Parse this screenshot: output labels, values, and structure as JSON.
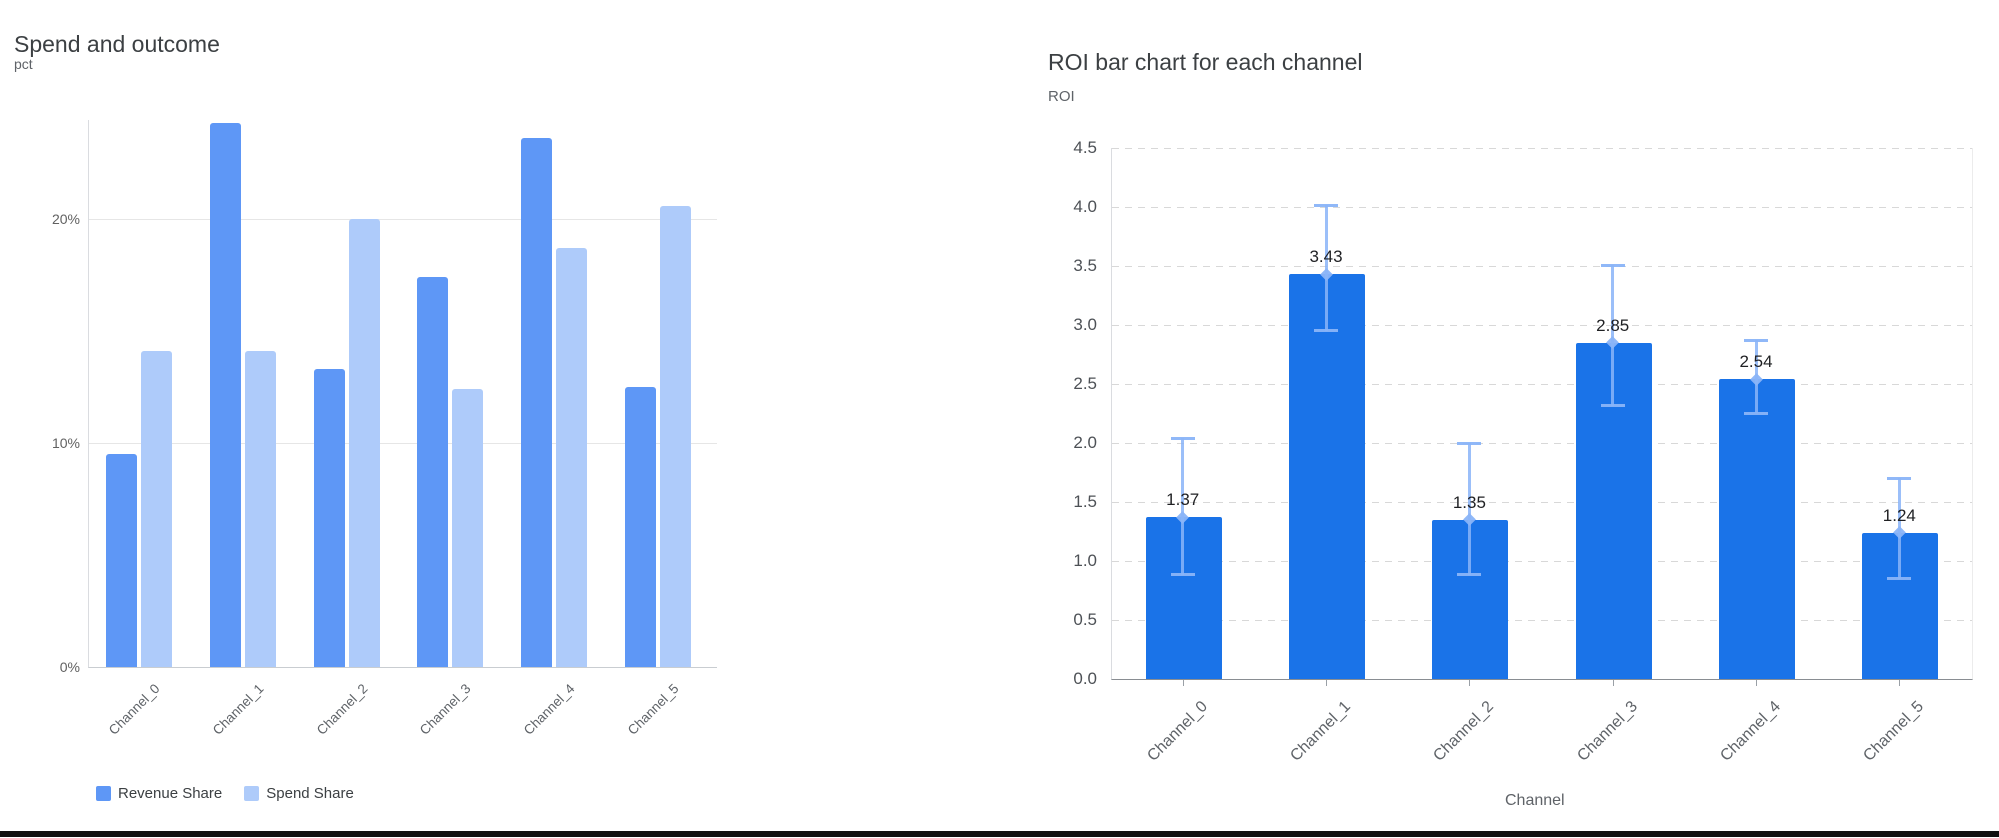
{
  "colors": {
    "revenue_bar": "#5e97f6",
    "spend_bar": "#aecbfa",
    "roi_bar": "#1a73e8",
    "error_bar": "#8ab4f8",
    "title_text": "#3c4043",
    "axis_text": "#5f6368",
    "data_label_text": "#1f2023"
  },
  "chart_data": [
    {
      "type": "bar",
      "title": "Spend and outcome",
      "ylabel": "pct",
      "xlabel": "",
      "categories": [
        "Channel_0",
        "Channel_1",
        "Channel_2",
        "Channel_3",
        "Channel_4",
        "Channel_5"
      ],
      "series": [
        {
          "name": "Revenue Share",
          "values": [
            9.5,
            24.3,
            13.3,
            17.4,
            23.6,
            12.5
          ]
        },
        {
          "name": "Spend Share",
          "values": [
            14.1,
            14.1,
            20.0,
            12.4,
            18.7,
            20.6
          ]
        }
      ],
      "y_ticks": [
        {
          "v": 0,
          "label": "0%"
        },
        {
          "v": 10,
          "label": "10%"
        },
        {
          "v": 20,
          "label": "20%"
        }
      ],
      "ylim": [
        0,
        24.4
      ],
      "grid": "solid",
      "legend_position": "bottom",
      "x_tick_rotation": 45
    },
    {
      "type": "bar",
      "title": "ROI bar chart for each channel",
      "ylabel": "ROI",
      "xlabel": "Channel",
      "categories": [
        "Channel_0",
        "Channel_1",
        "Channel_2",
        "Channel_3",
        "Channel_4",
        "Channel_5"
      ],
      "values": [
        1.37,
        3.43,
        1.35,
        2.85,
        2.54,
        1.24
      ],
      "data_labels": [
        "1.37",
        "3.43",
        "1.35",
        "2.85",
        "2.54",
        "1.24"
      ],
      "error_top": [
        2.04,
        4.02,
        2.0,
        3.51,
        2.87,
        1.7
      ],
      "error_bottom": [
        0.88,
        2.95,
        0.88,
        2.31,
        2.25,
        0.85
      ],
      "y_ticks": [
        "0.0",
        "0.5",
        "1.0",
        "1.5",
        "2.0",
        "2.5",
        "3.0",
        "3.5",
        "4.0",
        "4.5"
      ],
      "ylim": [
        0,
        4.5
      ],
      "grid": "dashed",
      "legend_position": "none",
      "x_tick_rotation": 45
    }
  ]
}
